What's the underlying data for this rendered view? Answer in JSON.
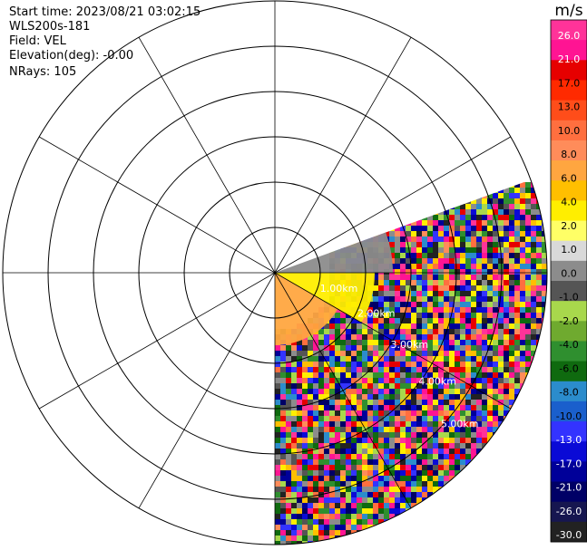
{
  "header": {
    "start_time": "Start time: 2023/08/21 03:02:15",
    "instrument": "WLS200s-181",
    "field": "Field: VEL",
    "elevation": "Elevation(deg): -0.00",
    "nrays": "NRays: 105"
  },
  "chart_data": {
    "type": "heatmap",
    "projection": "polar-ppi",
    "field": "VEL",
    "units": "m/s",
    "sector_azimuth_deg": [
      70,
      180
    ],
    "range_rings_km": [
      1,
      2,
      3,
      4,
      5,
      6
    ],
    "radial_spokes_deg": [
      0,
      30,
      60,
      90,
      120,
      150,
      180,
      210,
      240,
      270,
      300,
      330
    ],
    "range_labels": [
      "1.00km",
      "2.00km",
      "3.00km",
      "4.00km",
      "5.00km"
    ],
    "near_field": [
      {
        "description_value_ms": 4.0,
        "azimuth_deg": [
          90,
          120
        ],
        "max_range_km": 2.2
      },
      {
        "description_value_ms": 6.0,
        "azimuth_deg": [
          120,
          180
        ],
        "max_range_km": 1.6
      },
      {
        "description_value_ms": 0.0,
        "azimuth_deg": [
          70,
          90
        ],
        "max_range_km": 2.6
      }
    ],
    "colorbar": {
      "title": "m/s",
      "ticks": [
        "26.0",
        "21.0",
        "17.0",
        "13.0",
        "10.0",
        "8.0",
        "6.0",
        "4.0",
        "2.0",
        "1.0",
        "0.0",
        "-1.0",
        "-2.0",
        "-4.0",
        "-6.0",
        "-8.0",
        "-10.0",
        "-13.0",
        "-17.0",
        "-21.0",
        "-26.0",
        "-30.0"
      ],
      "colors": [
        "#ff3399",
        "#ff1493",
        "#e60000",
        "#ff2a00",
        "#ff4d1a",
        "#ff6f3f",
        "#ff8c5a",
        "#ffa640",
        "#ffbf00",
        "#ffee00",
        "#ffff66",
        "#d9d9d9",
        "#8c8c8c",
        "#555555",
        "#a8d84c",
        "#6faa2f",
        "#2f8f2f",
        "#0f6a0f",
        "#2b8ccc",
        "#1a5fcc",
        "#3333ff",
        "#0a0ad6",
        "#000099",
        "#000066",
        "#161650",
        "#222222"
      ]
    }
  }
}
